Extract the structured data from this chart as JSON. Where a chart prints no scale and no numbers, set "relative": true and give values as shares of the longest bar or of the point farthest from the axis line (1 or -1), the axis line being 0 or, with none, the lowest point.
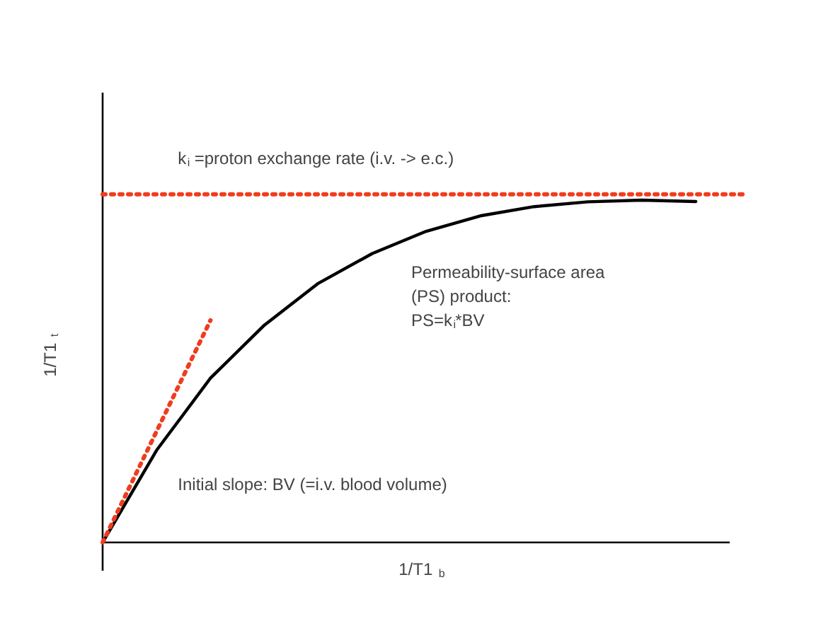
{
  "chart_data": {
    "type": "line",
    "relative": true,
    "xlabel": "1/T1$_{b}$",
    "ylabel": "1/T1$_{t}$",
    "categories": [
      null,
      null,
      null,
      null,
      null,
      null,
      null,
      null,
      null,
      null,
      null,
      null
    ],
    "series": [
      {
        "color": "#000000",
        "line_style": "solid",
        "values": [
          0,
          0.269,
          0.48,
          0.635,
          0.757,
          0.844,
          0.909,
          0.954,
          0.981,
          0.995,
          1.0,
          0.996
        ]
      },
      {
        "color": "#f03c1e",
        "line_style": "dotted",
        "values": [
          0,
          0.3245,
          0.649,
          null,
          null,
          null,
          null,
          null,
          null,
          null,
          null,
          null
        ]
      }
    ],
    "ref_lines": [
      {
        "axis": "y",
        "value": 1.017,
        "label": "k$_{i}$ =proton exchange rate (i.v. -> e.c.)",
        "color": "#f03c1e",
        "line_style": "dotted"
      }
    ],
    "annotations": [
      "Permeability-surface area\n(PS) product:\nPS=k$_{i}$*BV",
      "Initial slope: BV (=i.v. blood volume)"
    ]
  }
}
